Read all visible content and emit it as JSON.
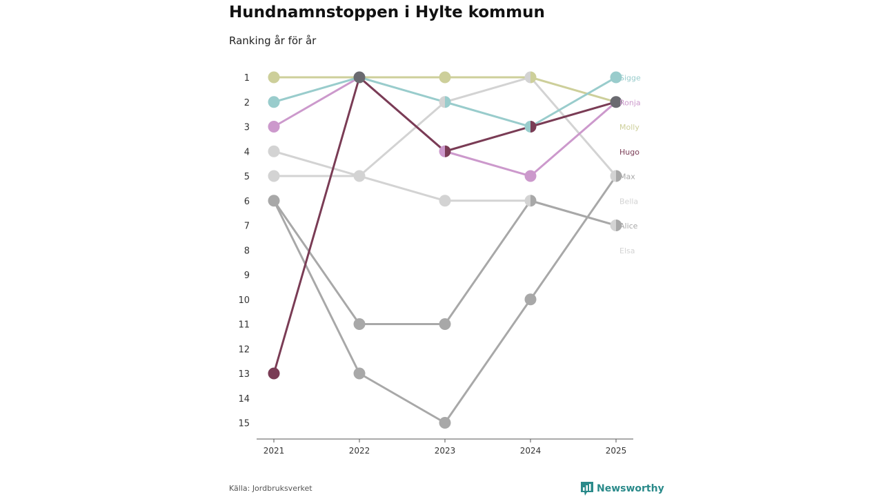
{
  "title": "Hundnamnstoppen i Hylte kommun",
  "subtitle": "Ranking år för år",
  "source": "Källa: Jordbruksverket",
  "brand": {
    "name": "Newsworthy",
    "color": "#2a8a8a",
    "icon": "bar-chart-icon"
  },
  "chart_data": {
    "type": "line",
    "chart_subtype": "bump",
    "x": [
      "2021",
      "2022",
      "2023",
      "2024",
      "2025"
    ],
    "y_ticks": [
      1,
      2,
      3,
      4,
      5,
      6,
      7,
      8,
      9,
      10,
      11,
      12,
      13,
      14,
      15
    ],
    "ylim": [
      1,
      15
    ],
    "y_reversed": true,
    "grid": false,
    "legend": "end-labels",
    "series": [
      {
        "name": "Elsa",
        "color": "#d3d3d3",
        "values": [
          4,
          5,
          6,
          6,
          7
        ]
      },
      {
        "name": "Bella",
        "color": "#d3d3d3",
        "values": [
          5,
          5,
          2,
          1,
          5
        ]
      },
      {
        "name": "Alice",
        "color": "#a8a8a8",
        "values": [
          6,
          13,
          15,
          10,
          5
        ]
      },
      {
        "name": "Max",
        "color": "#a8a8a8",
        "values": [
          6,
          11,
          11,
          6,
          7
        ]
      },
      {
        "name": "Molly",
        "color": "#cdcf9a",
        "values": [
          1,
          1,
          1,
          1,
          2
        ]
      },
      {
        "name": "Ronja",
        "color": "#cc99cc",
        "values": [
          3,
          1,
          4,
          5,
          2
        ]
      },
      {
        "name": "Sigge",
        "color": "#99cccc",
        "values": [
          2,
          1,
          2,
          3,
          1
        ]
      },
      {
        "name": "Hugo",
        "color": "#7a3c55",
        "values": [
          13,
          1,
          4,
          3,
          2
        ]
      }
    ],
    "end_labels": [
      {
        "name": "Sigge",
        "rank": 1,
        "color": "#99cccc"
      },
      {
        "name": "Ronja",
        "rank": 2,
        "color": "#cc99cc"
      },
      {
        "name": "Molly",
        "rank": 3,
        "color": "#cdcf9a"
      },
      {
        "name": "Hugo",
        "rank": 4,
        "color": "#7a3c55"
      },
      {
        "name": "Max",
        "rank": 5,
        "color": "#a8a8a8"
      },
      {
        "name": "Bella",
        "rank": 6,
        "color": "#d3d3d3"
      },
      {
        "name": "Alice",
        "rank": 7,
        "color": "#a8a8a8"
      },
      {
        "name": "Elsa",
        "rank": 8,
        "color": "#d3d3d3"
      }
    ],
    "tie_color": "#6a6a70"
  }
}
